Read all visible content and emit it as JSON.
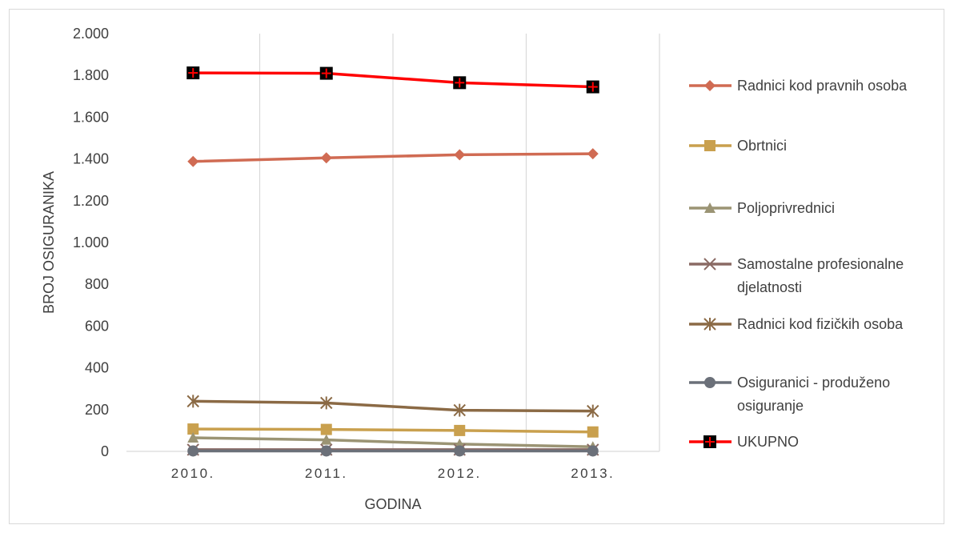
{
  "chart_data": {
    "type": "line",
    "title": "",
    "xlabel": "GODINA",
    "ylabel": "BROJ OSIGURANIKA",
    "categories": [
      "2010.",
      "2011.",
      "2012.",
      "2013."
    ],
    "ylim": [
      0,
      2000
    ],
    "y_ticks": [
      0,
      200,
      400,
      600,
      800,
      1000,
      1200,
      1400,
      1600,
      1800,
      2000
    ],
    "y_tick_labels": [
      "0",
      "200",
      "400",
      "600",
      "800",
      "1.000",
      "1.200",
      "1.400",
      "1.600",
      "1.800",
      "2.000"
    ],
    "grid": "vertical",
    "legend_position": "right",
    "series": [
      {
        "name": "Radnici kod pravnih osoba",
        "label_lines": [
          "Radnici kod pravnih osoba"
        ],
        "color": "#d06b53",
        "marker": "diamond",
        "values": [
          1388,
          1405,
          1420,
          1425
        ]
      },
      {
        "name": "Obrtnici",
        "label_lines": [
          "Obrtnici"
        ],
        "color": "#c9a04e",
        "marker": "square",
        "values": [
          107,
          105,
          100,
          93
        ]
      },
      {
        "name": "Poljoprivrednici",
        "label_lines": [
          "Poljoprivrednici"
        ],
        "color": "#9b9474",
        "marker": "triangle",
        "values": [
          65,
          55,
          35,
          22
        ]
      },
      {
        "name": "Samostalne profesionalne djelatnosti",
        "label_lines": [
          "Samostalne profesionalne",
          "djelatnosti"
        ],
        "color": "#8a6a64",
        "marker": "x",
        "values": [
          8,
          8,
          8,
          8
        ]
      },
      {
        "name": "Radnici kod fizičkih osoba",
        "label_lines": [
          "Radnici kod fizičkih osoba"
        ],
        "color": "#8b6a45",
        "marker": "star",
        "values": [
          240,
          232,
          197,
          193
        ]
      },
      {
        "name": "Osiguranici - produženo osiguranje",
        "label_lines": [
          "Osiguranici - produženo",
          "osiguranje"
        ],
        "color": "#6b7079",
        "marker": "circle",
        "values": [
          2,
          2,
          2,
          2
        ]
      },
      {
        "name": "UKUPNO",
        "label_lines": [
          "UKUPNO"
        ],
        "color": "#ff0000",
        "marker": "black-square-plus",
        "values": [
          1812,
          1810,
          1765,
          1745
        ]
      }
    ]
  }
}
